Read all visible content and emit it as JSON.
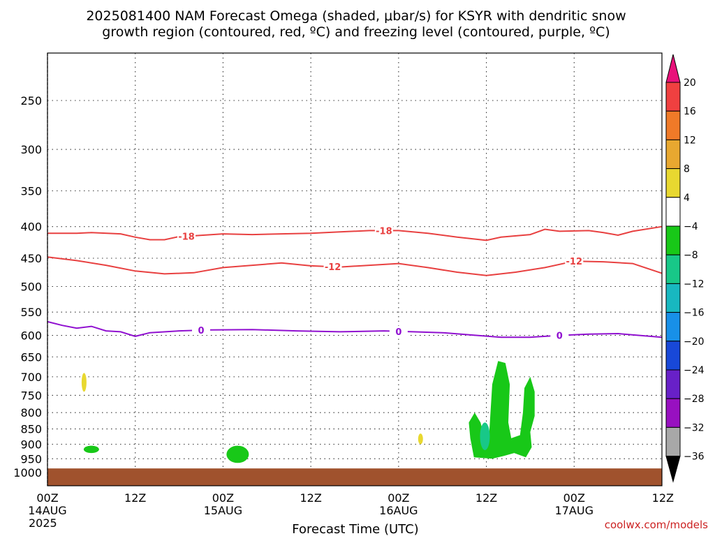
{
  "title_line1": "2025081400 NAM Forecast Omega (shaded, μbar/s) for KSYR with dendritic snow",
  "title_line2": "growth region (contoured, red, ºC) and freezing level (contoured, purple, ºC)",
  "credit": "coolwx.com/models",
  "chart_data": {
    "type": "time-height cross section",
    "title": "2025081400 NAM Forecast Omega (shaded, μbar/s) for KSYR with dendritic snow growth region (contoured, red, ºC) and freezing level (contoured, purple, ºC)",
    "xlabel": "Forecast Time (UTC)",
    "ylabel": "",
    "x_range_hours": [
      0,
      84
    ],
    "x_ticks": [
      {
        "h": 0,
        "line1": "00Z",
        "line2": "14AUG",
        "line3": "2025"
      },
      {
        "h": 12,
        "line1": "12Z",
        "line2": "",
        "line3": ""
      },
      {
        "h": 24,
        "line1": "00Z",
        "line2": "15AUG",
        "line3": ""
      },
      {
        "h": 36,
        "line1": "12Z",
        "line2": "",
        "line3": ""
      },
      {
        "h": 48,
        "line1": "00Z",
        "line2": "16AUG",
        "line3": ""
      },
      {
        "h": 60,
        "line1": "12Z",
        "line2": "",
        "line3": ""
      },
      {
        "h": 72,
        "line1": "00Z",
        "line2": "17AUG",
        "line3": ""
      },
      {
        "h": 84,
        "line1": "12Z",
        "line2": "",
        "line3": ""
      }
    ],
    "y_ticks_hpa": [
      250,
      300,
      350,
      400,
      450,
      500,
      550,
      600,
      650,
      700,
      750,
      800,
      850,
      900,
      950,
      1000
    ],
    "y_range_hpa": [
      200,
      1020
    ],
    "y_scale": "log-pressure",
    "grid": "dotted",
    "colorbar": {
      "levels": [
        "20",
        "16",
        "12",
        "8",
        "4",
        "−4",
        "−8",
        "−12",
        "−16",
        "−20",
        "−24",
        "−28",
        "−32",
        "−36"
      ],
      "colors": [
        "#e8117a",
        "#f04040",
        "#f07a28",
        "#e8a830",
        "#e8d830",
        "#ffffff",
        "#18c818",
        "#18c888",
        "#18b8c0",
        "#1890e8",
        "#1848d8",
        "#6820c8",
        "#9810c0",
        "#a8a8a8",
        "#000000"
      ]
    },
    "contours": [
      {
        "name": "−18",
        "label": "-18",
        "color": "#e84040",
        "points": [
          [
            0,
            410
          ],
          [
            4,
            410
          ],
          [
            6,
            409
          ],
          [
            10,
            411
          ],
          [
            12,
            416
          ],
          [
            14,
            420
          ],
          [
            16,
            420
          ],
          [
            18,
            415
          ],
          [
            20,
            414
          ],
          [
            24,
            411
          ],
          [
            28,
            412
          ],
          [
            32,
            411
          ],
          [
            36,
            410
          ],
          [
            40,
            408
          ],
          [
            44,
            406
          ],
          [
            48,
            406
          ],
          [
            52,
            410
          ],
          [
            56,
            416
          ],
          [
            60,
            421
          ],
          [
            62,
            416
          ],
          [
            66,
            412
          ],
          [
            68,
            404
          ],
          [
            70,
            407
          ],
          [
            74,
            406
          ],
          [
            76,
            409
          ],
          [
            78,
            413
          ],
          [
            80,
            407
          ],
          [
            84,
            400
          ]
        ],
        "labels_at_h": [
          19,
          46
        ]
      },
      {
        "name": "−12",
        "label": "-12",
        "color": "#e84040",
        "points": [
          [
            0,
            448
          ],
          [
            4,
            454
          ],
          [
            8,
            462
          ],
          [
            12,
            472
          ],
          [
            16,
            477
          ],
          [
            20,
            475
          ],
          [
            24,
            466
          ],
          [
            28,
            462
          ],
          [
            32,
            458
          ],
          [
            36,
            463
          ],
          [
            40,
            465
          ],
          [
            44,
            462
          ],
          [
            48,
            459
          ],
          [
            52,
            466
          ],
          [
            56,
            474
          ],
          [
            60,
            480
          ],
          [
            64,
            474
          ],
          [
            68,
            466
          ],
          [
            72,
            455
          ],
          [
            76,
            456
          ],
          [
            80,
            459
          ],
          [
            84,
            476
          ]
        ],
        "labels_at_h": [
          39,
          72
        ]
      },
      {
        "name": "0",
        "label": "0",
        "color": "#9010d0",
        "points": [
          [
            0,
            570
          ],
          [
            2,
            578
          ],
          [
            4,
            584
          ],
          [
            6,
            580
          ],
          [
            8,
            590
          ],
          [
            10,
            592
          ],
          [
            12,
            602
          ],
          [
            14,
            594
          ],
          [
            18,
            590
          ],
          [
            22,
            588
          ],
          [
            28,
            587
          ],
          [
            34,
            590
          ],
          [
            40,
            592
          ],
          [
            46,
            590
          ],
          [
            50,
            592
          ],
          [
            54,
            594
          ],
          [
            58,
            599
          ],
          [
            62,
            604
          ],
          [
            66,
            604
          ],
          [
            70,
            600
          ],
          [
            74,
            597
          ],
          [
            78,
            596
          ],
          [
            84,
            604
          ]
        ],
        "labels_at_h": [
          21,
          48,
          70
        ]
      }
    ],
    "shaded_regions": [
      {
        "value_range": "4 to 8",
        "color": "#e8d830",
        "center_h": 5,
        "p_top": 690,
        "p_bottom": 740
      },
      {
        "value_range": "-4 to -8",
        "color": "#18c818",
        "center_h": 6,
        "p_top": 905,
        "p_bottom": 930
      },
      {
        "value_range": "-4 to -8",
        "color": "#18c818",
        "center_h": 26,
        "p_top": 905,
        "p_bottom": 965
      },
      {
        "value_range": "4 to 8",
        "color": "#e8d830",
        "center_h": 51,
        "p_top": 865,
        "p_bottom": 900
      },
      {
        "value_range": "-4 to -8",
        "color": "#18c818",
        "center_h": 62,
        "p_top": 655,
        "p_bottom": 945
      },
      {
        "value_range": "-8 to -12",
        "color": "#18c888",
        "center_h": 60,
        "p_top": 830,
        "p_bottom": 920
      }
    ],
    "terrain": {
      "color": "#a0522d",
      "p_surface": 985
    }
  }
}
